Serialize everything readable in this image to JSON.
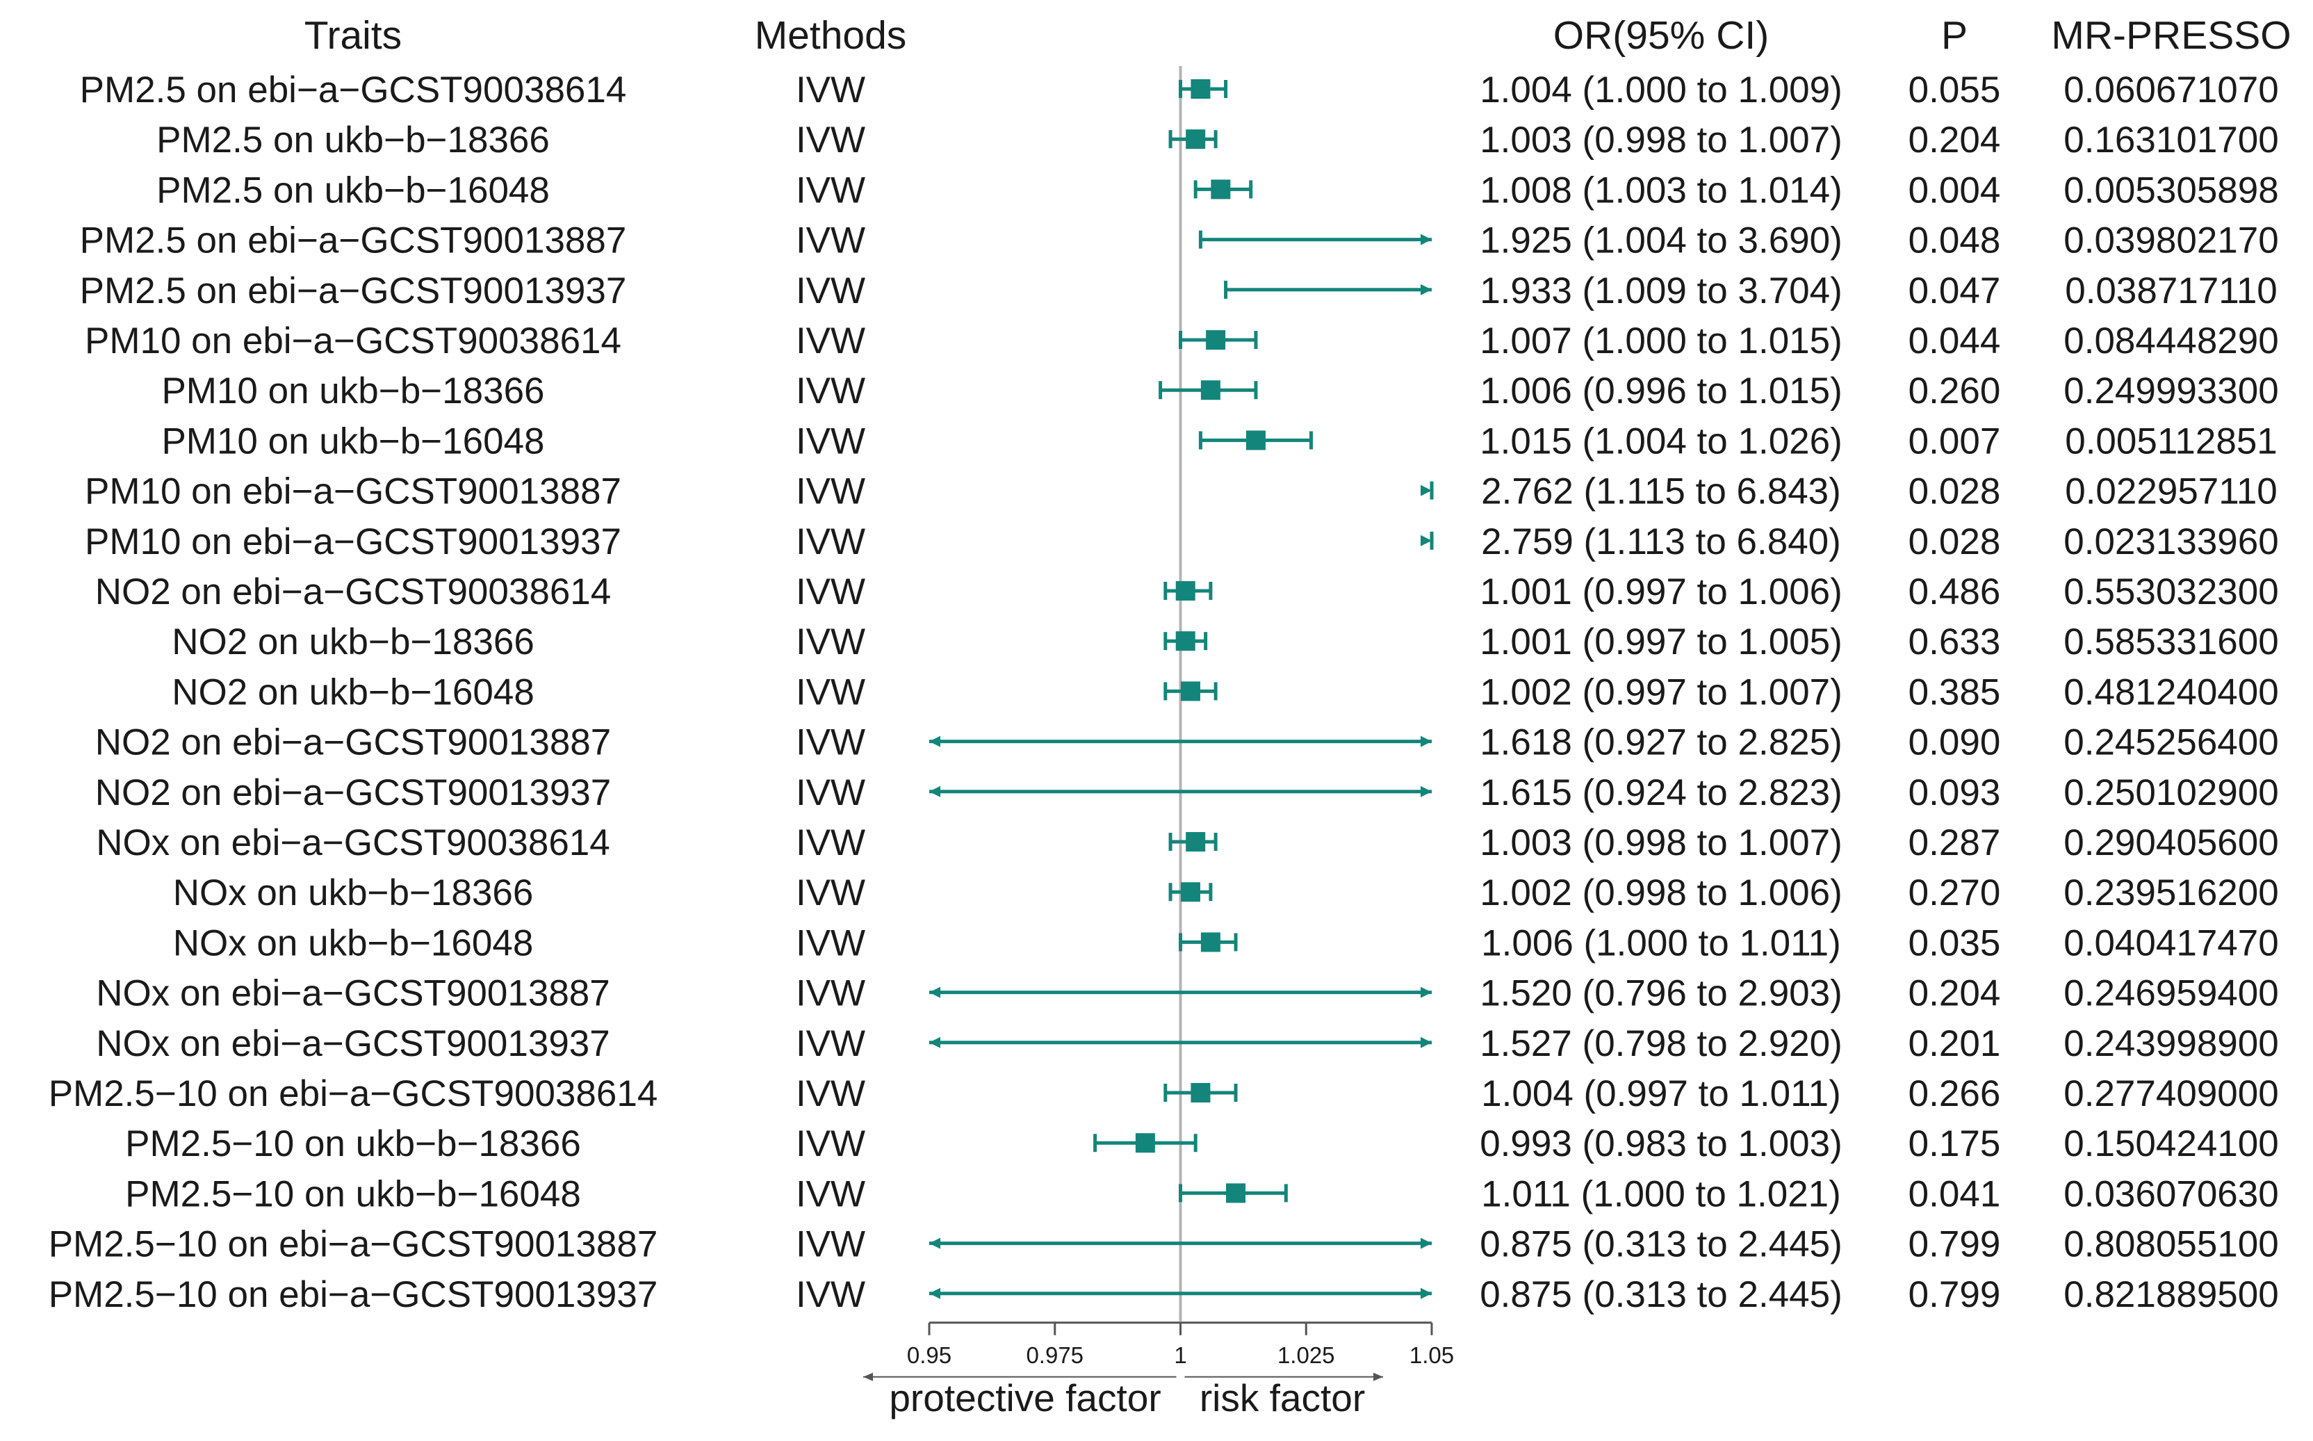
{
  "colors": {
    "mark": "#14857a",
    "refline": "#b3b3b3",
    "axis": "#555555",
    "text": "#1a1a1a"
  },
  "headers": {
    "traits": "Traits",
    "methods": "Methods",
    "or": "OR(95% CI)",
    "p": "P",
    "presso": "MR-PRESSO"
  },
  "footer": {
    "left": "protective factor",
    "right": "risk factor"
  },
  "chart_data": {
    "type": "forest",
    "xlim": [
      0.95,
      1.05
    ],
    "reference_line": 1,
    "ticks": [
      0.95,
      0.975,
      1,
      1.025,
      1.05
    ],
    "tick_labels": [
      "0.95",
      "0.975",
      "1",
      "1.025",
      "1.05"
    ],
    "rows": [
      {
        "trait": "PM2.5 on ebi−a−GCST90038614",
        "method": "IVW",
        "or": 1.004,
        "lo": 1.0,
        "hi": 1.009,
        "or_text": "1.004 (1.000 to 1.009)",
        "p": "0.055",
        "presso": "0.060671070"
      },
      {
        "trait": "PM2.5 on ukb−b−18366",
        "method": "IVW",
        "or": 1.003,
        "lo": 0.998,
        "hi": 1.007,
        "or_text": "1.003 (0.998 to 1.007)",
        "p": "0.204",
        "presso": "0.163101700"
      },
      {
        "trait": "PM2.5 on ukb−b−16048",
        "method": "IVW",
        "or": 1.008,
        "lo": 1.003,
        "hi": 1.014,
        "or_text": "1.008 (1.003 to 1.014)",
        "p": "0.004",
        "presso": "0.005305898"
      },
      {
        "trait": "PM2.5 on ebi−a−GCST90013887",
        "method": "IVW",
        "or": 1.925,
        "lo": 1.004,
        "hi": 3.69,
        "or_text": "1.925 (1.004 to 3.690)",
        "p": "0.048",
        "presso": "0.039802170"
      },
      {
        "trait": "PM2.5 on ebi−a−GCST90013937",
        "method": "IVW",
        "or": 1.933,
        "lo": 1.009,
        "hi": 3.704,
        "or_text": "1.933 (1.009 to 3.704)",
        "p": "0.047",
        "presso": "0.038717110"
      },
      {
        "trait": "PM10 on ebi−a−GCST90038614",
        "method": "IVW",
        "or": 1.007,
        "lo": 1.0,
        "hi": 1.015,
        "or_text": "1.007 (1.000 to 1.015)",
        "p": "0.044",
        "presso": "0.084448290"
      },
      {
        "trait": "PM10 on ukb−b−18366",
        "method": "IVW",
        "or": 1.006,
        "lo": 0.996,
        "hi": 1.015,
        "or_text": "1.006 (0.996 to 1.015)",
        "p": "0.260",
        "presso": "0.249993300"
      },
      {
        "trait": "PM10 on ukb−b−16048",
        "method": "IVW",
        "or": 1.015,
        "lo": 1.004,
        "hi": 1.026,
        "or_text": "1.015 (1.004 to 1.026)",
        "p": "0.007",
        "presso": "0.005112851"
      },
      {
        "trait": "PM10 on ebi−a−GCST90013887",
        "method": "IVW",
        "or": 2.762,
        "lo": 1.115,
        "hi": 6.843,
        "or_text": "2.762 (1.115 to 6.843)",
        "p": "0.028",
        "presso": "0.022957110"
      },
      {
        "trait": "PM10 on ebi−a−GCST90013937",
        "method": "IVW",
        "or": 2.759,
        "lo": 1.113,
        "hi": 6.84,
        "or_text": "2.759 (1.113 to 6.840)",
        "p": "0.028",
        "presso": "0.023133960"
      },
      {
        "trait": "NO2 on ebi−a−GCST90038614",
        "method": "IVW",
        "or": 1.001,
        "lo": 0.997,
        "hi": 1.006,
        "or_text": "1.001 (0.997 to 1.006)",
        "p": "0.486",
        "presso": "0.553032300"
      },
      {
        "trait": "NO2 on ukb−b−18366",
        "method": "IVW",
        "or": 1.001,
        "lo": 0.997,
        "hi": 1.005,
        "or_text": "1.001 (0.997 to 1.005)",
        "p": "0.633",
        "presso": "0.585331600"
      },
      {
        "trait": "NO2 on ukb−b−16048",
        "method": "IVW",
        "or": 1.002,
        "lo": 0.997,
        "hi": 1.007,
        "or_text": "1.002 (0.997 to 1.007)",
        "p": "0.385",
        "presso": "0.481240400"
      },
      {
        "trait": "NO2 on ebi−a−GCST90013887",
        "method": "IVW",
        "or": 1.618,
        "lo": 0.927,
        "hi": 2.825,
        "or_text": "1.618 (0.927 to 2.825)",
        "p": "0.090",
        "presso": "0.245256400"
      },
      {
        "trait": "NO2 on ebi−a−GCST90013937",
        "method": "IVW",
        "or": 1.615,
        "lo": 0.924,
        "hi": 2.823,
        "or_text": "1.615 (0.924 to 2.823)",
        "p": "0.093",
        "presso": "0.250102900"
      },
      {
        "trait": "NOx on ebi−a−GCST90038614",
        "method": "IVW",
        "or": 1.003,
        "lo": 0.998,
        "hi": 1.007,
        "or_text": "1.003 (0.998 to 1.007)",
        "p": "0.287",
        "presso": "0.290405600"
      },
      {
        "trait": "NOx on ukb−b−18366",
        "method": "IVW",
        "or": 1.002,
        "lo": 0.998,
        "hi": 1.006,
        "or_text": "1.002 (0.998 to 1.006)",
        "p": "0.270",
        "presso": "0.239516200"
      },
      {
        "trait": "NOx on ukb−b−16048",
        "method": "IVW",
        "or": 1.006,
        "lo": 1.0,
        "hi": 1.011,
        "or_text": "1.006 (1.000 to 1.011)",
        "p": "0.035",
        "presso": "0.040417470"
      },
      {
        "trait": "NOx on ebi−a−GCST90013887",
        "method": "IVW",
        "or": 1.52,
        "lo": 0.796,
        "hi": 2.903,
        "or_text": "1.520 (0.796 to 2.903)",
        "p": "0.204",
        "presso": "0.246959400"
      },
      {
        "trait": "NOx on ebi−a−GCST90013937",
        "method": "IVW",
        "or": 1.527,
        "lo": 0.798,
        "hi": 2.92,
        "or_text": "1.527 (0.798 to 2.920)",
        "p": "0.201",
        "presso": "0.243998900"
      },
      {
        "trait": "PM2.5−10 on ebi−a−GCST90038614",
        "method": "IVW",
        "or": 1.004,
        "lo": 0.997,
        "hi": 1.011,
        "or_text": "1.004 (0.997 to 1.011)",
        "p": "0.266",
        "presso": "0.277409000"
      },
      {
        "trait": "PM2.5−10 on ukb−b−18366",
        "method": "IVW",
        "or": 0.993,
        "lo": 0.983,
        "hi": 1.003,
        "or_text": "0.993 (0.983 to 1.003)",
        "p": "0.175",
        "presso": "0.150424100"
      },
      {
        "trait": "PM2.5−10 on ukb−b−16048",
        "method": "IVW",
        "or": 1.011,
        "lo": 1.0,
        "hi": 1.021,
        "or_text": "1.011 (1.000 to 1.021)",
        "p": "0.041",
        "presso": "0.036070630"
      },
      {
        "trait": "PM2.5−10 on ebi−a−GCST90013887",
        "method": "IVW",
        "or": 0.875,
        "lo": 0.313,
        "hi": 2.445,
        "or_text": "0.875 (0.313 to 2.445)",
        "p": "0.799",
        "presso": "0.808055100"
      },
      {
        "trait": "PM2.5−10 on ebi−a−GCST90013937",
        "method": "IVW",
        "or": 0.875,
        "lo": 0.313,
        "hi": 2.445,
        "or_text": "0.875 (0.313 to 2.445)",
        "p": "0.799",
        "presso": "0.821889500"
      }
    ]
  }
}
